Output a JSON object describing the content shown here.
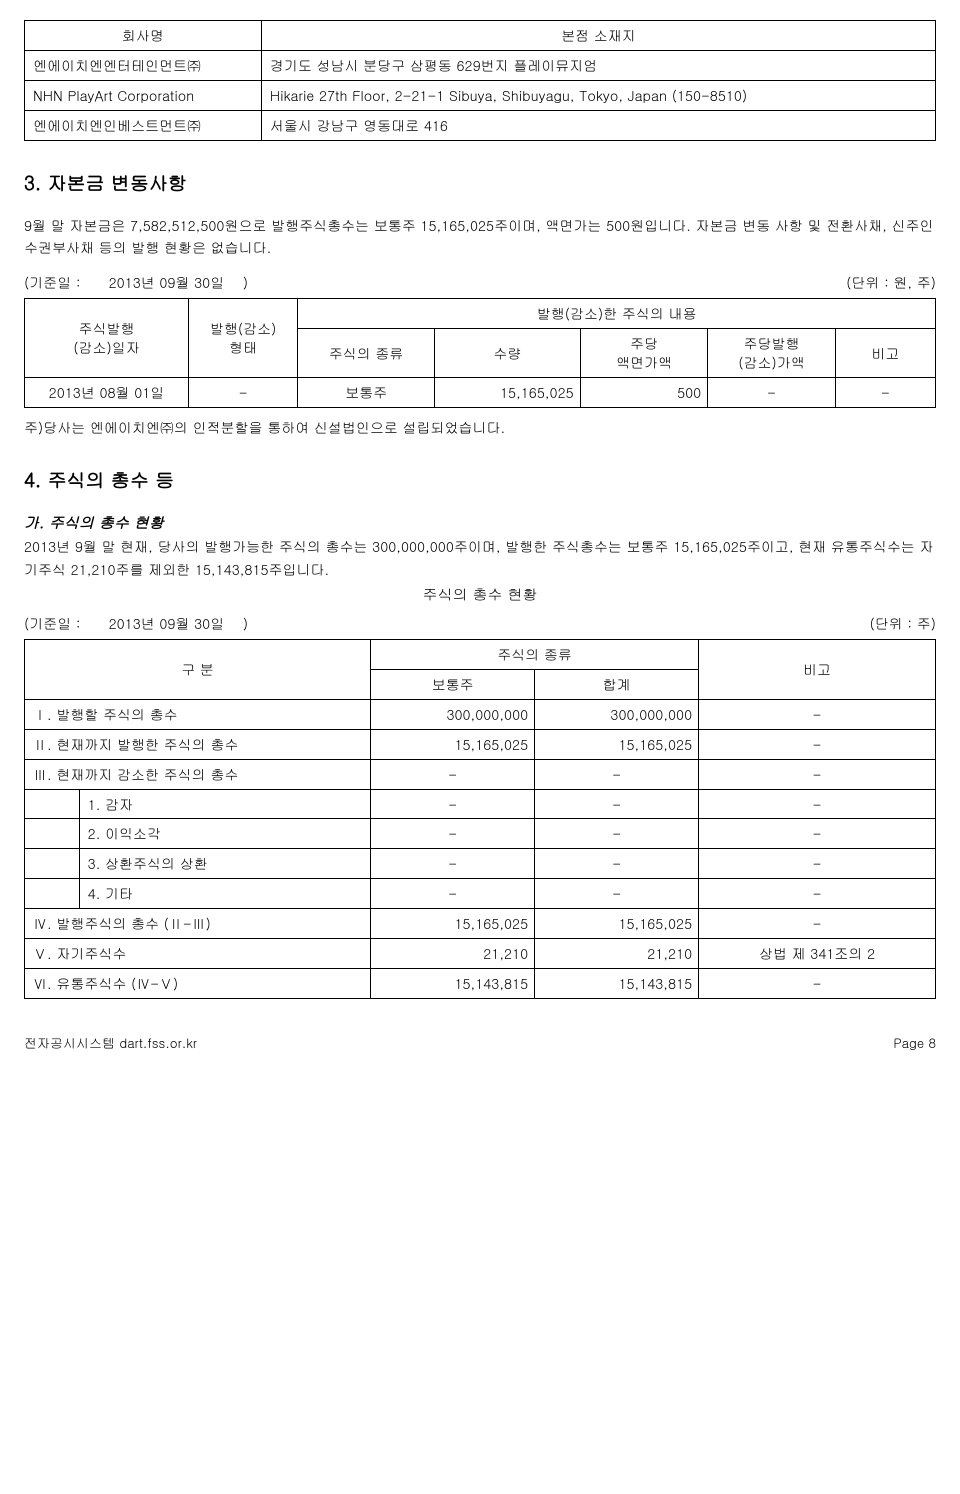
{
  "table1": {
    "headers": {
      "company": "회사명",
      "address": "본점 소재지"
    },
    "rows": [
      {
        "company": "엔에이치엔엔터테인먼트㈜",
        "address": "경기도 성남시 분당구 삼평동 629번지 플레이뮤지엄"
      },
      {
        "company": "NHN PlayArt Corporation",
        "address": "Hikarie 27th Floor, 2-21-1 Sibuya, Shibuyagu, Tokyo, Japan (150-8510)"
      },
      {
        "company": "엔에이치엔인베스트먼트㈜",
        "address": "서울시 강남구 영동대로 416"
      }
    ]
  },
  "section3": {
    "title": "3. 자본금 변동사항",
    "para": "9월 말 자본금은 7,582,512,500원으로 발행주식총수는 보통주 15,165,025주이며, 액면가는 500원입니다. 자본금 변동 사항 및 전환사채, 신주인수권부사채 등의 발행 현황은 없습니다.",
    "basis_label": "(기준일 :",
    "basis_date": "2013년 09월 30일",
    "basis_close": ")",
    "unit": "(단위 : 원, 주)"
  },
  "table2": {
    "headers": {
      "date": "주식발행\n(감소)일자",
      "type": "발행(감소)\n형태",
      "group": "발행(감소)한 주식의 내용",
      "kind": "주식의 종류",
      "qty": "수량",
      "par": "주당\n액면가액",
      "per": "주당발행\n(감소)가액",
      "note": "비고"
    },
    "row": {
      "date": "2013년 08월 01일",
      "type": "-",
      "kind": "보통주",
      "qty": "15,165,025",
      "par": "500",
      "per": "-",
      "note": "-"
    },
    "footnote": "주)당사는 엔에이치엔㈜의 인적분할을 통하여 신설법인으로 설립되었습니다."
  },
  "section4": {
    "title": "4. 주식의 총수 등",
    "sub_title": "가. 주식의 총수 현황",
    "para": "2013년 9월 말 현재, 당사의 발행가능한 주식의 총수는 300,000,000주이며, 발행한 주식총수는 보통주 15,165,025주이고, 현재 유통주식수는 자기주식 21,210주를 제외한 15,143,815주입니다.",
    "table_title": "주식의 총수 현황",
    "basis_label": "(기준일 :",
    "basis_date": "2013년 09월 30일",
    "basis_close": ")",
    "unit": "(단위 : 주)"
  },
  "table3": {
    "headers": {
      "cat": "구 분",
      "kind_group": "주식의 종류",
      "common": "보통주",
      "total": "합계",
      "note": "비고"
    },
    "rows": [
      {
        "label": "Ⅰ. 발행할 주식의 총수",
        "common": "300,000,000",
        "total": "300,000,000",
        "note": "-",
        "span": true
      },
      {
        "label": "Ⅱ. 현재까지 발행한 주식의 총수",
        "common": "15,165,025",
        "total": "15,165,025",
        "note": "-",
        "span": true
      },
      {
        "label": "Ⅲ. 현재까지 감소한 주식의 총수",
        "common": "-",
        "total": "-",
        "note": "-",
        "span": true
      },
      {
        "label": "1. 감자",
        "common": "-",
        "total": "-",
        "note": "-",
        "span": false
      },
      {
        "label": "2. 이익소각",
        "common": "-",
        "total": "-",
        "note": "-",
        "span": false
      },
      {
        "label": "3. 상환주식의 상환",
        "common": "-",
        "total": "-",
        "note": "-",
        "span": false
      },
      {
        "label": "4. 기타",
        "common": "-",
        "total": "-",
        "note": "-",
        "span": false
      },
      {
        "label": "Ⅳ. 발행주식의 총수 (Ⅱ-Ⅲ)",
        "common": "15,165,025",
        "total": "15,165,025",
        "note": "-",
        "span": true
      },
      {
        "label": "Ⅴ. 자기주식수",
        "common": "21,210",
        "total": "21,210",
        "note": "상법 제 341조의 2",
        "span": true
      },
      {
        "label": "Ⅵ. 유통주식수 (Ⅳ-Ⅴ)",
        "common": "15,143,815",
        "total": "15,143,815",
        "note": "-",
        "span": true
      }
    ]
  },
  "footer": {
    "left": "전자공시시스템 dart.fss.or.kr",
    "right": "Page 8"
  }
}
